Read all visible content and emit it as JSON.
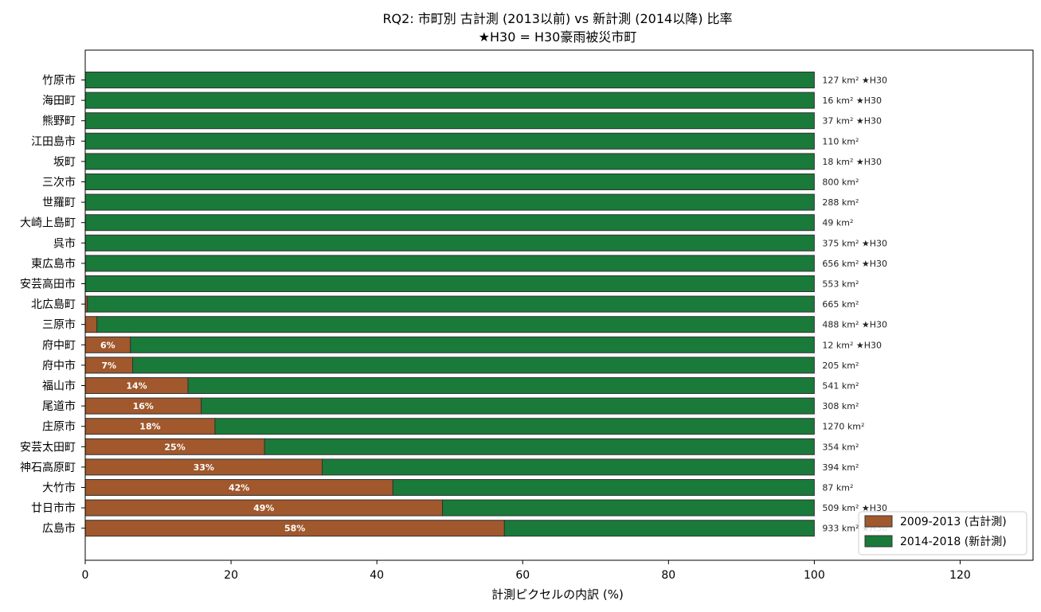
{
  "chart_data": {
    "type": "bar",
    "orientation": "horizontal",
    "stacked": true,
    "title": "RQ2: 市町別 古計測 (2013以前) vs 新計測 (2014以降) 比率",
    "subtitle": "★H30 = H30豪雨被災市町",
    "xlabel": "計測ピクセルの内訳 (%)",
    "ylabel": "",
    "xlim": [
      0,
      130
    ],
    "xticks": [
      0,
      20,
      40,
      60,
      80,
      100,
      120
    ],
    "grid": false,
    "legend_position": "bottom-right",
    "categories": [
      "竹原市",
      "海田町",
      "熊野町",
      "江田島市",
      "坂町",
      "三次市",
      "世羅町",
      "大崎上島町",
      "呉市",
      "東広島市",
      "安芸高田市",
      "北広島町",
      "三原市",
      "府中町",
      "府中市",
      "福山市",
      "尾道市",
      "庄原市",
      "安芸太田町",
      "神石高原町",
      "大竹市",
      "廿日市市",
      "広島市"
    ],
    "series": [
      {
        "name": "2009-2013 (古計測)",
        "color": "#a0582c",
        "values": [
          0,
          0,
          0,
          0,
          0,
          0,
          0,
          0,
          0,
          0,
          0,
          0.3,
          1.6,
          6.2,
          6.5,
          14.1,
          15.9,
          17.8,
          24.6,
          32.5,
          42.2,
          49.0,
          57.5
        ]
      },
      {
        "name": "2014-2018 (新計測)",
        "color": "#1a7a3a",
        "values": [
          100,
          100,
          100,
          100,
          100,
          100,
          100,
          100,
          100,
          100,
          100,
          99.7,
          98.4,
          93.8,
          93.5,
          85.9,
          84.1,
          82.2,
          75.4,
          67.5,
          57.8,
          51.0,
          42.5
        ]
      }
    ],
    "pct_labels": [
      "",
      "",
      "",
      "",
      "",
      "",
      "",
      "",
      "",
      "",
      "",
      "",
      "",
      "6%",
      "7%",
      "14%",
      "16%",
      "18%",
      "25%",
      "33%",
      "42%",
      "49%",
      "58%"
    ],
    "annotations": [
      "127 km² ★H30",
      "16 km² ★H30",
      "37 km² ★H30",
      "110 km²",
      "18 km² ★H30",
      "800 km²",
      "288 km²",
      "49 km²",
      "375 km² ★H30",
      "656 km² ★H30",
      "553 km²",
      "665 km²",
      "488 km² ★H30",
      "12 km² ★H30",
      "205 km²",
      "541 km²",
      "308 km²",
      "1270 km²",
      "354 km²",
      "394 km²",
      "87 km²",
      "509 km² ★H30",
      "933 km² ★H30"
    ]
  }
}
